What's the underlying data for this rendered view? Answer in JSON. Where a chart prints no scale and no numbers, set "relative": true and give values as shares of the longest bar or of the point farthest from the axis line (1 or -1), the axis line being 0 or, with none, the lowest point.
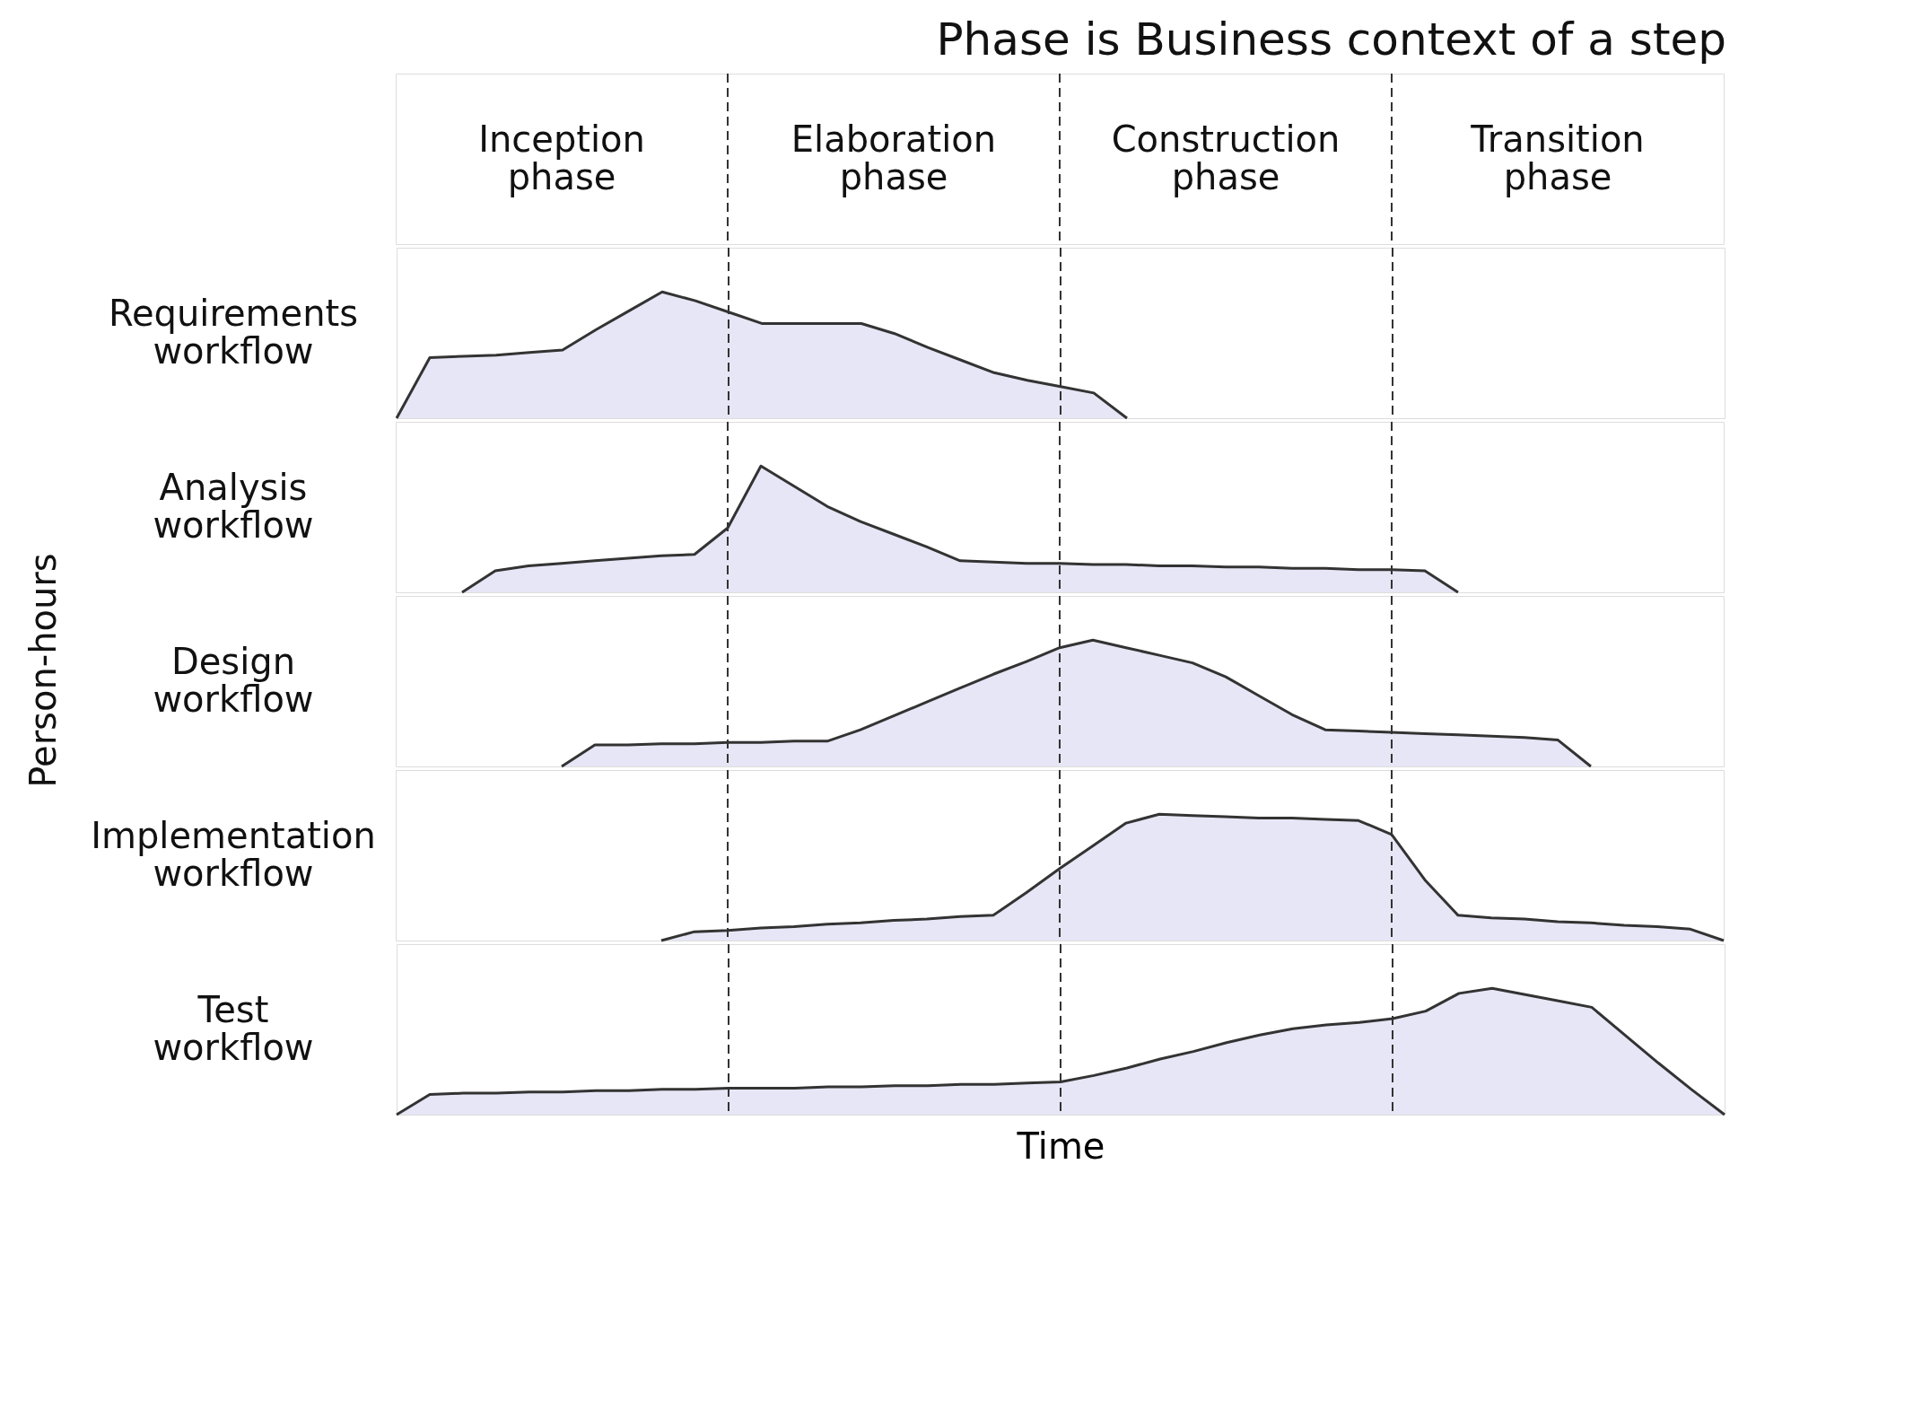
{
  "chart_data": [
    {
      "type": "other",
      "title": "Phase is Business context of a step",
      "ylabel": "Person-hours",
      "annotations": [
        "Inception phase",
        "Elaboration phase",
        "Construction phase",
        "Transition phase"
      ]
    },
    {
      "type": "area",
      "relative": true,
      "grid": "x",
      "ylabel": "Requirements workflow",
      "categories": [
        null,
        null,
        null,
        null,
        null,
        null,
        null,
        null,
        null,
        null,
        null,
        null,
        null,
        null,
        null,
        null,
        null,
        null,
        null,
        null,
        null,
        null,
        null,
        null,
        null,
        null,
        null,
        null,
        null,
        null,
        null,
        null,
        null,
        null,
        null,
        null,
        null,
        null,
        null,
        null,
        null
      ],
      "series": [
        {
          "color": "#dcdcf2",
          "values": [
            0,
            0.48,
            0.49,
            0.5,
            0.52,
            0.54,
            0.7,
            0.85,
            1.0,
            0.93,
            0.84,
            0.75,
            0.75,
            0.75,
            0.75,
            0.67,
            0.56,
            0.46,
            0.36,
            0.3,
            0.25,
            0.2,
            0,
            null,
            null,
            null,
            null,
            null,
            null,
            null,
            null,
            null,
            null,
            null,
            null,
            null,
            null,
            null,
            null,
            null,
            null
          ]
        }
      ]
    },
    {
      "type": "area",
      "relative": true,
      "grid": "x",
      "ylabel": "Analysis workflow",
      "categories": [
        null,
        null,
        null,
        null,
        null,
        null,
        null,
        null,
        null,
        null,
        null,
        null,
        null,
        null,
        null,
        null,
        null,
        null,
        null,
        null,
        null,
        null,
        null,
        null,
        null,
        null,
        null,
        null,
        null,
        null,
        null,
        null,
        null,
        null,
        null,
        null,
        null,
        null,
        null,
        null,
        null
      ],
      "series": [
        {
          "color": "#dcdcf2",
          "values": [
            null,
            null,
            0,
            0.17,
            0.21,
            0.23,
            0.25,
            0.27,
            0.29,
            0.3,
            0.51,
            1.0,
            0.84,
            0.68,
            0.56,
            0.46,
            0.36,
            0.25,
            0.24,
            0.23,
            0.23,
            0.22,
            0.22,
            0.21,
            0.21,
            0.2,
            0.2,
            0.19,
            0.19,
            0.18,
            0.18,
            0.17,
            0,
            null,
            null,
            null,
            null,
            null,
            null,
            null,
            null
          ]
        }
      ]
    },
    {
      "type": "area",
      "relative": true,
      "grid": "x",
      "ylabel": "Design workflow",
      "categories": [
        null,
        null,
        null,
        null,
        null,
        null,
        null,
        null,
        null,
        null,
        null,
        null,
        null,
        null,
        null,
        null,
        null,
        null,
        null,
        null,
        null,
        null,
        null,
        null,
        null,
        null,
        null,
        null,
        null,
        null,
        null,
        null,
        null,
        null,
        null,
        null,
        null,
        null,
        null,
        null,
        null
      ],
      "series": [
        {
          "color": "#dcdcf2",
          "values": [
            null,
            null,
            null,
            null,
            null,
            0,
            0.17,
            0.17,
            0.18,
            0.18,
            0.19,
            0.19,
            0.2,
            0.2,
            0.29,
            0.4,
            0.51,
            0.62,
            0.73,
            0.83,
            0.94,
            1.0,
            0.94,
            0.88,
            0.82,
            0.71,
            0.56,
            0.41,
            0.29,
            0.28,
            0.27,
            0.26,
            0.25,
            0.24,
            0.23,
            0.21,
            0,
            null,
            null,
            null,
            null
          ]
        }
      ]
    },
    {
      "type": "area",
      "relative": true,
      "grid": "x",
      "ylabel": "Implementation workflow",
      "categories": [
        null,
        null,
        null,
        null,
        null,
        null,
        null,
        null,
        null,
        null,
        null,
        null,
        null,
        null,
        null,
        null,
        null,
        null,
        null,
        null,
        null,
        null,
        null,
        null,
        null,
        null,
        null,
        null,
        null,
        null,
        null,
        null,
        null,
        null,
        null,
        null,
        null,
        null,
        null,
        null,
        null
      ],
      "series": [
        {
          "color": "#dcdcf2",
          "values": [
            null,
            null,
            null,
            null,
            null,
            null,
            null,
            null,
            0,
            0.07,
            0.08,
            0.1,
            0.11,
            0.13,
            0.14,
            0.16,
            0.17,
            0.19,
            0.2,
            0.38,
            0.57,
            0.75,
            0.93,
            1.0,
            0.99,
            0.98,
            0.97,
            0.97,
            0.96,
            0.95,
            0.84,
            0.48,
            0.2,
            0.18,
            0.17,
            0.15,
            0.14,
            0.12,
            0.11,
            0.09,
            0
          ]
        }
      ]
    },
    {
      "type": "area",
      "relative": true,
      "grid": "x",
      "ylabel": "Test workflow",
      "xlabel": "Time",
      "categories": [
        null,
        null,
        null,
        null,
        null,
        null,
        null,
        null,
        null,
        null,
        null,
        null,
        null,
        null,
        null,
        null,
        null,
        null,
        null,
        null,
        null,
        null,
        null,
        null,
        null,
        null,
        null,
        null,
        null,
        null,
        null,
        null,
        null,
        null,
        null,
        null,
        null,
        null,
        null,
        null,
        null
      ],
      "series": [
        {
          "color": "#dcdcf2",
          "values": [
            0,
            0.16,
            0.17,
            0.17,
            0.18,
            0.18,
            0.19,
            0.19,
            0.2,
            0.2,
            0.21,
            0.21,
            0.21,
            0.22,
            0.22,
            0.23,
            0.23,
            0.24,
            0.24,
            0.25,
            0.26,
            0.31,
            0.37,
            0.44,
            0.5,
            0.57,
            0.63,
            0.68,
            0.71,
            0.73,
            0.76,
            0.82,
            0.96,
            1.0,
            0.95,
            0.9,
            0.85,
            0.63,
            0.41,
            0.2,
            0
          ]
        }
      ]
    }
  ]
}
